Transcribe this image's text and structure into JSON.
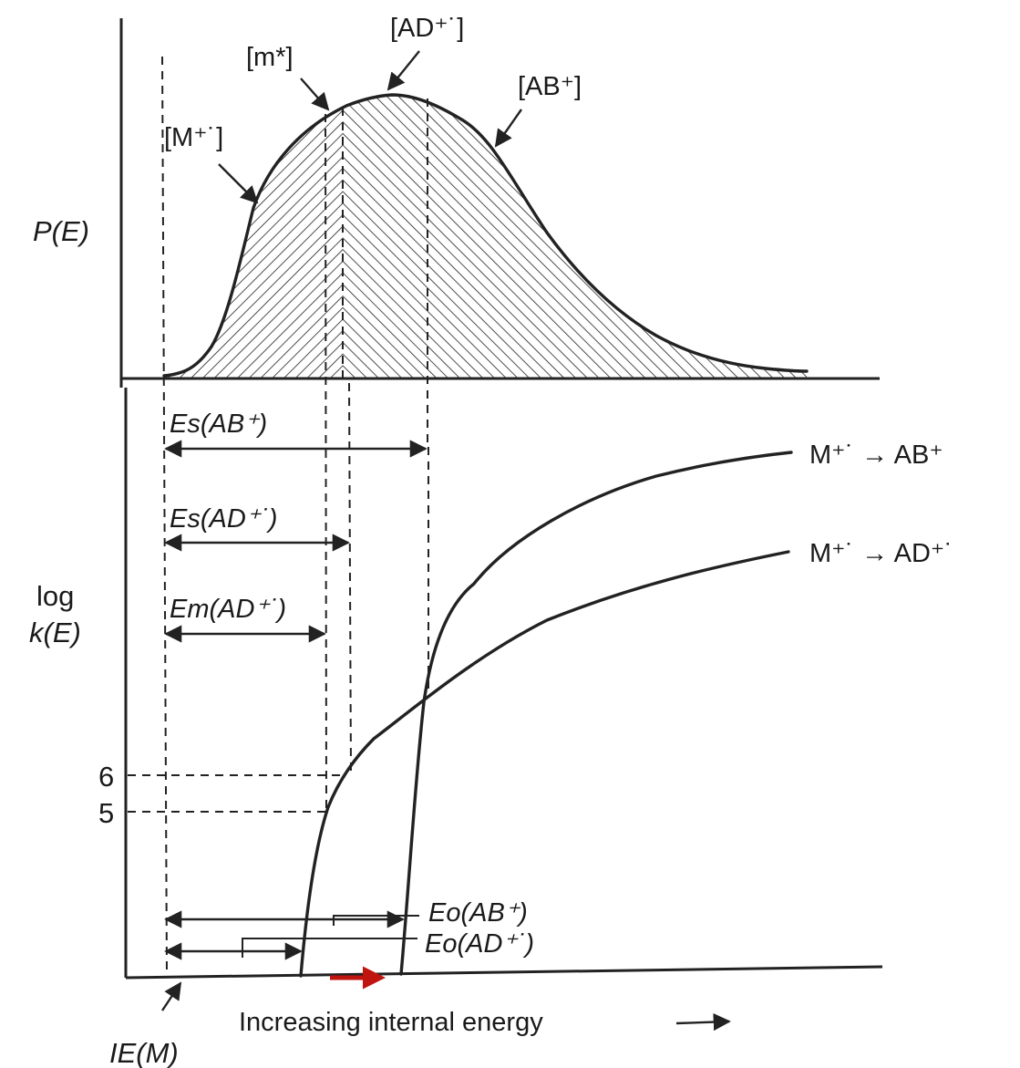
{
  "top_panel": {
    "y_label": "P(E)",
    "peak_labels": {
      "M": "[M⁺˙]",
      "m_star": "[m*]",
      "AD": "[AD⁺˙]",
      "AB": "[AB⁺]"
    }
  },
  "bottom_panel": {
    "y_label_line1": "log",
    "y_label_line2": "k(E)",
    "y_ticks": [
      "6",
      "5"
    ],
    "energy_labels": {
      "Es_AB": "Es(AB⁺)",
      "Es_AD": "Es(AD⁺˙)",
      "Em_AD": "Em(AD⁺˙)",
      "Eo_AB": "Eo(AB⁺)",
      "Eo_AD": "Eo(AD⁺˙)"
    },
    "curve_labels": {
      "to_AB": "M⁺˙ → AB⁺",
      "to_AD": "M⁺˙ → AD⁺˙"
    }
  },
  "x_axis": {
    "label": "Increasing internal energy",
    "origin_label": "IE(M)"
  },
  "colors": {
    "ink": "#222222",
    "highlight_arrow": "#c0140e"
  }
}
